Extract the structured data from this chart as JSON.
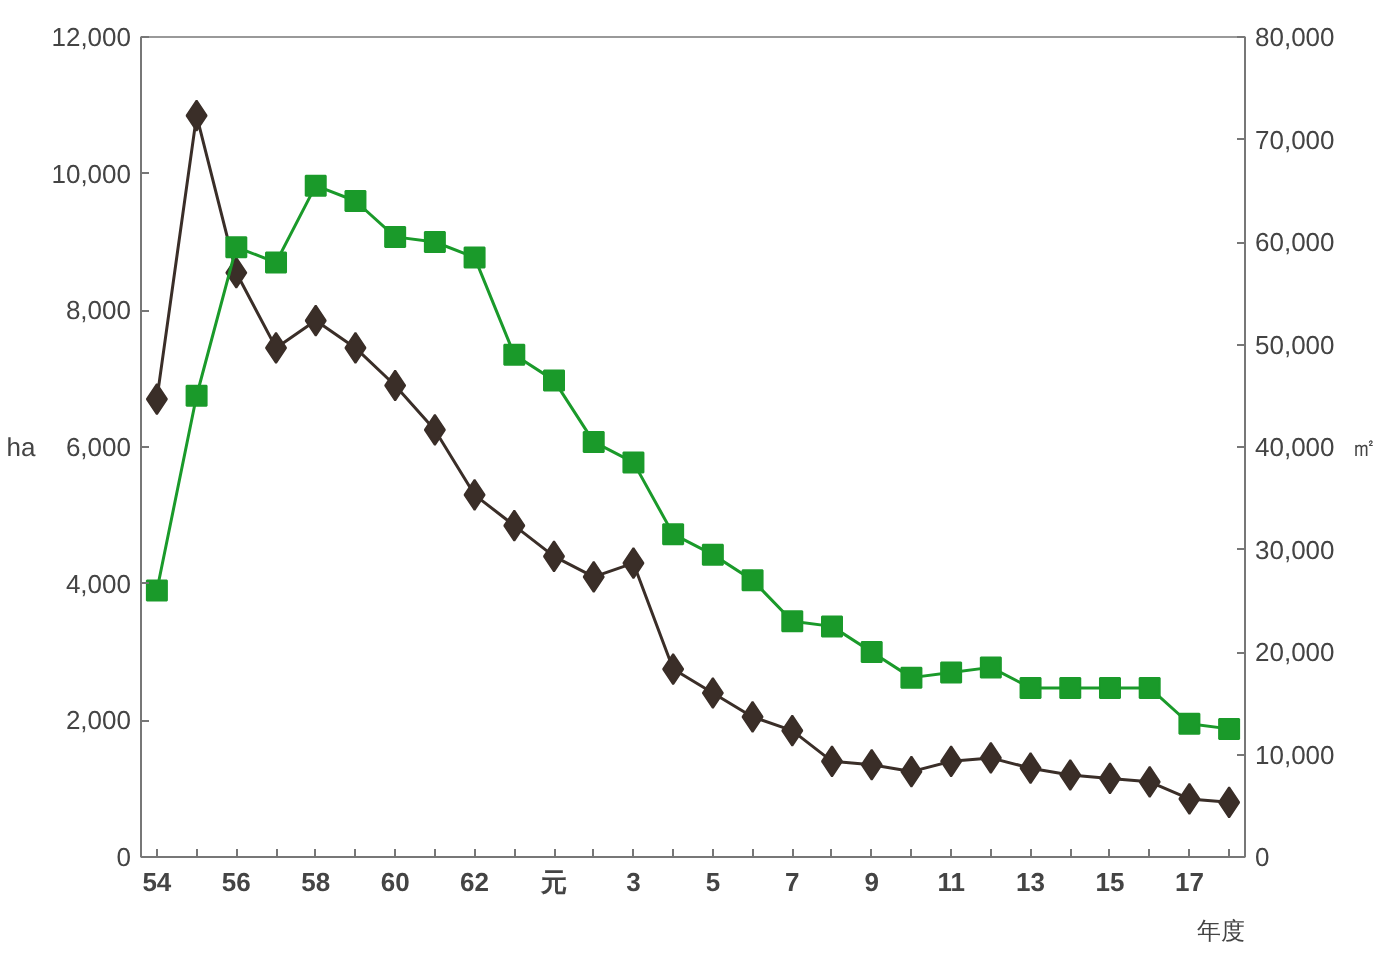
{
  "chart_data": {
    "type": "line",
    "xlabel": "年度",
    "ylabel": "ha",
    "y2label": "㎡",
    "categories": [
      "54",
      null,
      "56",
      null,
      "58",
      null,
      "60",
      null,
      "62",
      null,
      "元",
      null,
      "3",
      null,
      "5",
      null,
      "7",
      null,
      "9",
      null,
      "11",
      null,
      "13",
      null,
      "15",
      null,
      "17",
      null
    ],
    "series": [
      {
        "color": "#3a2e28",
        "marker": "diamond",
        "values": [
          6700,
          10850,
          8550,
          7450,
          7850,
          7450,
          6900,
          6250,
          5300,
          4850,
          4400,
          4100,
          4300,
          2750,
          2400,
          2050,
          1850,
          1400,
          1350,
          1250,
          1400,
          1450,
          1300,
          1200,
          1150,
          1100,
          850,
          800
        ]
      },
      {
        "color": "#1a9a2a",
        "marker": "square",
        "axis": "y2",
        "values": [
          26000,
          45000,
          59500,
          58000,
          65500,
          64000,
          60500,
          60000,
          58500,
          49000,
          46500,
          40500,
          38500,
          31500,
          29500,
          27000,
          23000,
          22500,
          20000,
          17500,
          18000,
          18500,
          16500,
          16500,
          16500,
          16500,
          13000,
          12500
        ]
      }
    ],
    "ylim": [
      0,
      12000
    ],
    "yticks": [
      {
        "value": 0,
        "label": "0"
      },
      {
        "value": 2000,
        "label": "2,000"
      },
      {
        "value": 4000,
        "label": "4,000"
      },
      {
        "value": 6000,
        "label": "6,000"
      },
      {
        "value": 8000,
        "label": "8,000"
      },
      {
        "value": 10000,
        "label": "10,000"
      },
      {
        "value": 12000,
        "label": "12,000"
      }
    ],
    "y2lim": [
      0,
      80000
    ],
    "y2ticks": [
      {
        "value": 0,
        "label": "0"
      },
      {
        "value": 10000,
        "label": "10,000"
      },
      {
        "value": 20000,
        "label": "20,000"
      },
      {
        "value": 30000,
        "label": "30,000"
      },
      {
        "value": 40000,
        "label": "40,000"
      },
      {
        "value": 50000,
        "label": "50,000"
      },
      {
        "value": 60000,
        "label": "60,000"
      },
      {
        "value": 70000,
        "label": "70,000"
      },
      {
        "value": 80000,
        "label": "80,000"
      }
    ],
    "grid": false,
    "line_style": "solid"
  }
}
